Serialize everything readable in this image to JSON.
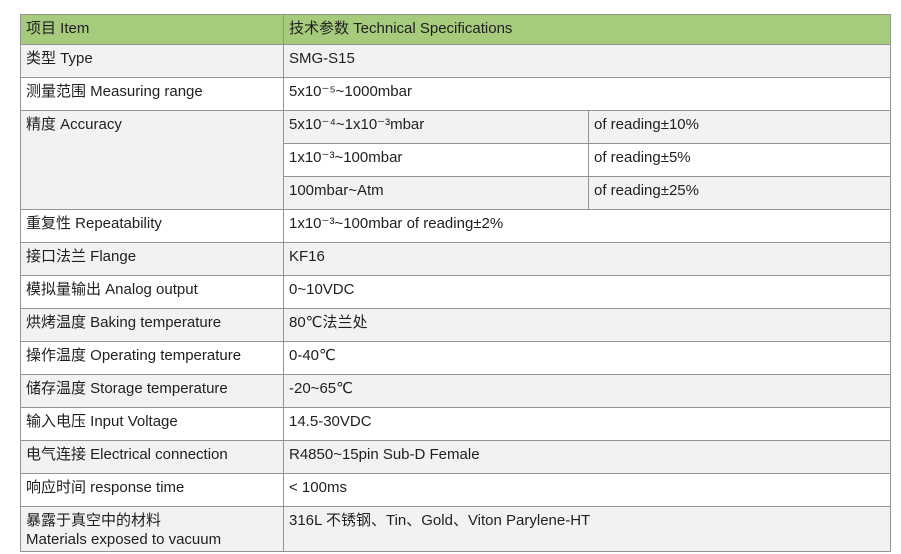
{
  "table": {
    "colors": {
      "header_bg": "#a6cb7d",
      "alt_row_bg": "#f2f2f2",
      "border": "#949494",
      "text": "#1f1f1f"
    },
    "header": {
      "item": "项目 Item",
      "spec": "技术参数 Technical Specifications"
    },
    "rows": {
      "type": {
        "label": "类型 Type",
        "value": "SMG-S15"
      },
      "measuring_range": {
        "label": "测量范围 Measuring range",
        "value": "5x10⁻⁵~1000mbar"
      },
      "repeatability": {
        "label": "重复性 Repeatability",
        "value": "1x10⁻³~100mbar of reading±2%"
      },
      "flange": {
        "label": "接口法兰 Flange",
        "value": "KF16"
      },
      "analog_output": {
        "label": "模拟量输出 Analog output",
        "value": "0~10VDC"
      },
      "baking_temperature": {
        "label": "烘烤温度 Baking temperature",
        "value": "80℃法兰处"
      },
      "operating_temperature": {
        "label": "操作温度 Operating temperature",
        "value": "0-40℃"
      },
      "storage_temperature": {
        "label": "储存温度 Storage temperature",
        "value": "-20~65℃"
      },
      "input_voltage": {
        "label": "输入电压 Input Voltage",
        "value": "14.5-30VDC"
      },
      "electrical_connection": {
        "label": "电气连接 Electrical connection",
        "value": "R4850~15pin Sub-D Female"
      },
      "response_time": {
        "label": "响应时间 response time",
        "value": "< 100ms"
      },
      "materials": {
        "label_zh": "暴露于真空中的材料",
        "label_en": "Materials exposed to vacuum",
        "value": "316L 不锈钢、Tin、Gold、Viton Parylene-HT"
      }
    },
    "accuracy": {
      "label": "精度 Accuracy",
      "sub_rows": [
        {
          "range": "5x10⁻⁴~1x10⁻³mbar",
          "tolerance": "of reading±10%"
        },
        {
          "range": "1x10⁻³~100mbar",
          "tolerance": "of reading±5%"
        },
        {
          "range": "100mbar~Atm",
          "tolerance": "of reading±25%"
        }
      ]
    }
  }
}
